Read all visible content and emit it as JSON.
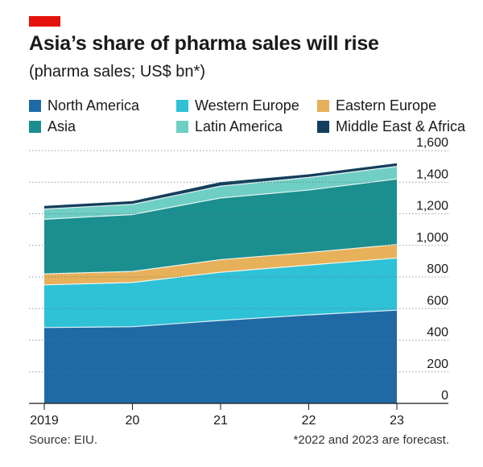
{
  "header": {
    "title": "Asia’s share of pharma sales will rise",
    "subtitle": "(pharma sales; US$ bn*)"
  },
  "footer": {
    "source": "Source: EIU.",
    "footnote": "*2022 and 2023 are forecast."
  },
  "chart_data": {
    "type": "area",
    "stacked": true,
    "title": "Asia’s share of pharma sales will rise",
    "subtitle": "(pharma sales; US$ bn*)",
    "x": [
      "2019",
      "20",
      "21",
      "22",
      "23"
    ],
    "y_ticks": [
      "0",
      "200",
      "400",
      "600",
      "800",
      "1,000",
      "1,200",
      "1,400",
      "1,600"
    ],
    "ylim": [
      0,
      1600
    ],
    "y_axis_side": "right",
    "grid": "horizontal dotted",
    "legend_position": "top",
    "series": [
      {
        "name": "North America",
        "color": "#1f6aa5",
        "values": [
          480,
          485,
          525,
          560,
          590
        ]
      },
      {
        "name": "Western Europe",
        "color": "#2fc1d6",
        "values": [
          270,
          280,
          305,
          315,
          330
        ]
      },
      {
        "name": "Eastern Europe",
        "color": "#e7b15a",
        "values": [
          70,
          70,
          80,
          80,
          85
        ]
      },
      {
        "name": "Asia",
        "color": "#1b8f8f",
        "values": [
          345,
          360,
          390,
          395,
          415
        ]
      },
      {
        "name": "Latin America",
        "color": "#6fcfc4",
        "values": [
          65,
          65,
          75,
          80,
          80
        ]
      },
      {
        "name": "Middle East & Africa",
        "color": "#133f5c",
        "values": [
          20,
          20,
          25,
          20,
          20
        ]
      }
    ]
  }
}
